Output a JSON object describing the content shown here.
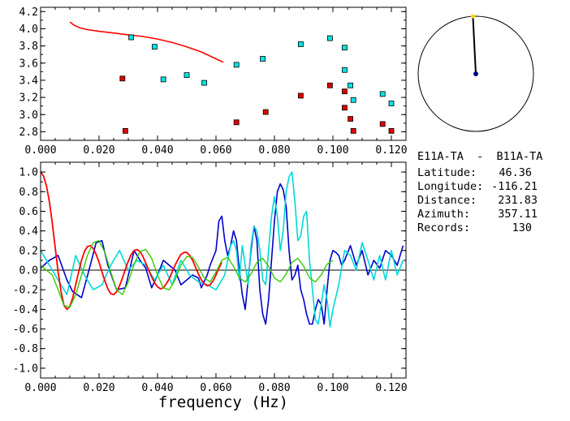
{
  "chart_data": [
    {
      "type": "scatter",
      "title": "",
      "xlabel": "",
      "ylabel": "",
      "xlim": [
        0,
        0.125
      ],
      "ylim": [
        2.7,
        4.25
      ],
      "x_ticks": [
        "0.000",
        "0.020",
        "0.040",
        "0.060",
        "0.080",
        "0.100",
        "0.120"
      ],
      "y_ticks": [
        "2.8",
        "3.0",
        "3.2",
        "3.4",
        "3.6",
        "3.8",
        "4.0",
        "4.2"
      ],
      "grid": false,
      "series": [
        {
          "color": "#ff0000",
          "kind": "line",
          "x": [
            0.01,
            0.0115,
            0.0135,
            0.016,
            0.02,
            0.025,
            0.03,
            0.035,
            0.04,
            0.045,
            0.05,
            0.055,
            0.06,
            0.0625
          ],
          "y": [
            4.08,
            4.04,
            4.01,
            3.99,
            3.97,
            3.95,
            3.93,
            3.91,
            3.88,
            3.84,
            3.79,
            3.73,
            3.65,
            3.61
          ]
        },
        {
          "color": "#00e5e5",
          "kind": "square",
          "x": [
            0.031,
            0.039,
            0.042,
            0.05,
            0.056,
            0.067,
            0.076,
            0.089,
            0.099,
            0.104,
            0.104,
            0.106,
            0.107,
            0.117,
            0.12
          ],
          "y": [
            3.9,
            3.79,
            3.41,
            3.46,
            3.37,
            3.58,
            3.65,
            3.82,
            3.89,
            3.78,
            3.52,
            3.34,
            3.17,
            3.24,
            3.13
          ]
        },
        {
          "color": "#e00000",
          "kind": "square",
          "x": [
            0.028,
            0.029,
            0.067,
            0.077,
            0.089,
            0.099,
            0.104,
            0.104,
            0.106,
            0.107,
            0.117,
            0.12
          ],
          "y": [
            3.42,
            2.81,
            2.91,
            3.03,
            3.22,
            3.34,
            3.27,
            3.08,
            2.95,
            2.81,
            2.89,
            2.81
          ]
        }
      ]
    },
    {
      "type": "line",
      "title": "",
      "xlabel": "frequency (Hz)",
      "ylabel": "",
      "xlim": [
        0,
        0.125
      ],
      "ylim": [
        -1.1,
        1.1
      ],
      "x_ticks": [
        "0.000",
        "0.020",
        "0.040",
        "0.060",
        "0.080",
        "0.100",
        "0.120"
      ],
      "y_ticks": [
        "1.0",
        "0.8",
        "0.6",
        "0.4",
        "0.2",
        "0.0",
        "-0.2",
        "-0.4",
        "-0.6",
        "-0.8",
        "-1.0"
      ],
      "grid": false,
      "zero_line": true,
      "series": [
        {
          "color": "#0000cc",
          "x": [
            0.0,
            0.003,
            0.006,
            0.009,
            0.011,
            0.014,
            0.017,
            0.019,
            0.021,
            0.023,
            0.026,
            0.029,
            0.032,
            0.034,
            0.036,
            0.038,
            0.04,
            0.042,
            0.044,
            0.046,
            0.048,
            0.05,
            0.052,
            0.054,
            0.055,
            0.057,
            0.058,
            0.06,
            0.061,
            0.062,
            0.063,
            0.064,
            0.065,
            0.066,
            0.067,
            0.068,
            0.069,
            0.07,
            0.071,
            0.072,
            0.073,
            0.074,
            0.075,
            0.076,
            0.077,
            0.078,
            0.079,
            0.08,
            0.081,
            0.082,
            0.083,
            0.084,
            0.085,
            0.086,
            0.087,
            0.088,
            0.089,
            0.09,
            0.091,
            0.092,
            0.093,
            0.094,
            0.095,
            0.096,
            0.097,
            0.098,
            0.099,
            0.1,
            0.101,
            0.102,
            0.103,
            0.104,
            0.106,
            0.108,
            0.11,
            0.112,
            0.114,
            0.116,
            0.118,
            0.12,
            0.122,
            0.124
          ],
          "y": [
            0.02,
            0.1,
            0.15,
            -0.1,
            -0.22,
            -0.28,
            0.05,
            0.28,
            0.3,
            0.05,
            -0.2,
            -0.18,
            0.2,
            0.1,
            0.02,
            -0.18,
            -0.05,
            0.1,
            0.05,
            0.0,
            -0.15,
            -0.1,
            -0.05,
            -0.08,
            -0.18,
            -0.05,
            0.05,
            0.2,
            0.5,
            0.55,
            0.3,
            0.15,
            0.25,
            0.4,
            0.3,
            0.0,
            -0.25,
            -0.4,
            -0.1,
            0.2,
            0.45,
            0.3,
            -0.2,
            -0.45,
            -0.55,
            -0.3,
            0.1,
            0.5,
            0.8,
            0.88,
            0.82,
            0.65,
            0.2,
            -0.1,
            -0.05,
            0.05,
            -0.2,
            -0.3,
            -0.45,
            -0.55,
            -0.55,
            -0.4,
            -0.3,
            -0.35,
            -0.55,
            -0.2,
            0.1,
            0.2,
            0.18,
            0.15,
            0.05,
            0.1,
            0.25,
            0.05,
            0.2,
            -0.05,
            0.1,
            0.02,
            0.2,
            0.15,
            0.05,
            0.25
          ]
        },
        {
          "color": "#00d8d8",
          "x": [
            0.0,
            0.003,
            0.006,
            0.009,
            0.012,
            0.015,
            0.018,
            0.021,
            0.024,
            0.027,
            0.03,
            0.033,
            0.036,
            0.039,
            0.042,
            0.045,
            0.048,
            0.051,
            0.054,
            0.057,
            0.06,
            0.063,
            0.064,
            0.065,
            0.066,
            0.067,
            0.068,
            0.069,
            0.07,
            0.071,
            0.072,
            0.073,
            0.074,
            0.075,
            0.076,
            0.077,
            0.078,
            0.079,
            0.08,
            0.081,
            0.082,
            0.083,
            0.084,
            0.085,
            0.086,
            0.087,
            0.088,
            0.089,
            0.09,
            0.091,
            0.092,
            0.093,
            0.094,
            0.095,
            0.096,
            0.097,
            0.098,
            0.099,
            0.1,
            0.102,
            0.104,
            0.106,
            0.108,
            0.11,
            0.112,
            0.114,
            0.116,
            0.118,
            0.12,
            0.122,
            0.124
          ],
          "y": [
            0.2,
            0.05,
            -0.1,
            -0.25,
            0.15,
            -0.05,
            -0.2,
            -0.15,
            0.05,
            0.2,
            0.0,
            0.1,
            0.05,
            -0.1,
            0.05,
            -0.15,
            0.1,
            -0.05,
            -0.12,
            -0.15,
            -0.2,
            -0.05,
            0.1,
            0.25,
            0.3,
            0.2,
            -0.1,
            0.25,
            0.05,
            -0.15,
            0.25,
            0.45,
            0.4,
            0.2,
            -0.1,
            -0.15,
            0.2,
            0.55,
            0.75,
            0.55,
            0.2,
            0.4,
            0.8,
            0.95,
            1.0,
            0.7,
            0.3,
            0.35,
            0.55,
            0.6,
            0.1,
            -0.2,
            -0.5,
            -0.55,
            -0.35,
            -0.15,
            -0.3,
            -0.58,
            -0.4,
            -0.15,
            0.2,
            0.15,
            0.0,
            0.28,
            0.1,
            -0.1,
            0.15,
            -0.1,
            0.2,
            -0.05,
            0.1
          ]
        },
        {
          "color": "#ff0000",
          "x": [
            0.0,
            0.001,
            0.002,
            0.003,
            0.004,
            0.005,
            0.006,
            0.007,
            0.008,
            0.009,
            0.01,
            0.011,
            0.012,
            0.013,
            0.014,
            0.015,
            0.016,
            0.017,
            0.018,
            0.019,
            0.02,
            0.021,
            0.022,
            0.023,
            0.024,
            0.025,
            0.026,
            0.027,
            0.028,
            0.029,
            0.03,
            0.031,
            0.032,
            0.033,
            0.034,
            0.035,
            0.036,
            0.037,
            0.038,
            0.039,
            0.04,
            0.041,
            0.042,
            0.043,
            0.044,
            0.045,
            0.046,
            0.047,
            0.048,
            0.049,
            0.05,
            0.051,
            0.052,
            0.053,
            0.054,
            0.055,
            0.056,
            0.057,
            0.058,
            0.059,
            0.06,
            0.061,
            0.062
          ],
          "y": [
            1.0,
            0.96,
            0.86,
            0.7,
            0.48,
            0.23,
            -0.02,
            -0.22,
            -0.36,
            -0.4,
            -0.37,
            -0.28,
            -0.15,
            -0.02,
            0.1,
            0.19,
            0.24,
            0.25,
            0.22,
            0.16,
            0.08,
            -0.02,
            -0.11,
            -0.19,
            -0.24,
            -0.25,
            -0.22,
            -0.16,
            -0.08,
            0.01,
            0.09,
            0.16,
            0.2,
            0.21,
            0.19,
            0.14,
            0.07,
            0.0,
            -0.07,
            -0.13,
            -0.17,
            -0.19,
            -0.18,
            -0.14,
            -0.09,
            -0.02,
            0.05,
            0.11,
            0.16,
            0.18,
            0.18,
            0.15,
            0.1,
            0.03,
            -0.04,
            -0.1,
            -0.14,
            -0.16,
            -0.15,
            -0.11,
            -0.05,
            0.02,
            0.08
          ]
        },
        {
          "color": "#33cc00",
          "x": [
            0.0,
            0.002,
            0.004,
            0.006,
            0.008,
            0.01,
            0.012,
            0.014,
            0.016,
            0.018,
            0.02,
            0.022,
            0.024,
            0.026,
            0.028,
            0.03,
            0.032,
            0.034,
            0.036,
            0.038,
            0.04,
            0.042,
            0.044,
            0.046,
            0.048,
            0.05,
            0.052,
            0.054,
            0.056,
            0.058,
            0.06,
            0.062,
            0.064,
            0.066,
            0.068,
            0.07,
            0.072,
            0.074,
            0.076,
            0.078,
            0.08,
            0.082,
            0.084,
            0.086,
            0.088,
            0.09,
            0.092,
            0.094,
            0.096,
            0.098,
            0.1
          ],
          "y": [
            0.05,
            0.0,
            -0.05,
            -0.2,
            -0.36,
            -0.38,
            -0.25,
            -0.05,
            0.15,
            0.28,
            0.3,
            0.18,
            -0.02,
            -0.2,
            -0.25,
            -0.12,
            0.06,
            0.19,
            0.21,
            0.12,
            -0.05,
            -0.18,
            -0.2,
            -0.1,
            0.05,
            0.14,
            0.13,
            0.03,
            -0.08,
            -0.12,
            -0.02,
            0.1,
            0.13,
            0.04,
            -0.08,
            -0.12,
            -0.04,
            0.08,
            0.12,
            0.04,
            -0.08,
            -0.12,
            -0.04,
            0.08,
            0.12,
            0.04,
            -0.08,
            -0.12,
            -0.05,
            0.06,
            0.1
          ]
        }
      ]
    },
    {
      "type": "other",
      "kind": "azimuth-dial",
      "azimuth_deg": 357.11,
      "ring_color": "#000000",
      "needle_color": "#000000",
      "center_color": "#000080",
      "tip_color": "#ffd700"
    }
  ],
  "info": {
    "station_pair": "E11A-TA  -  B11A-TA",
    "latitude_label": "Latitude:",
    "latitude_value": "46.36",
    "longitude_label": "Longitude:",
    "longitude_value": "-116.21",
    "distance_label": "Distance:",
    "distance_value": "231.83",
    "azimuth_label": "Azimuth:",
    "azimuth_value": "357.11",
    "records_label": "Records:",
    "records_value": "130"
  }
}
